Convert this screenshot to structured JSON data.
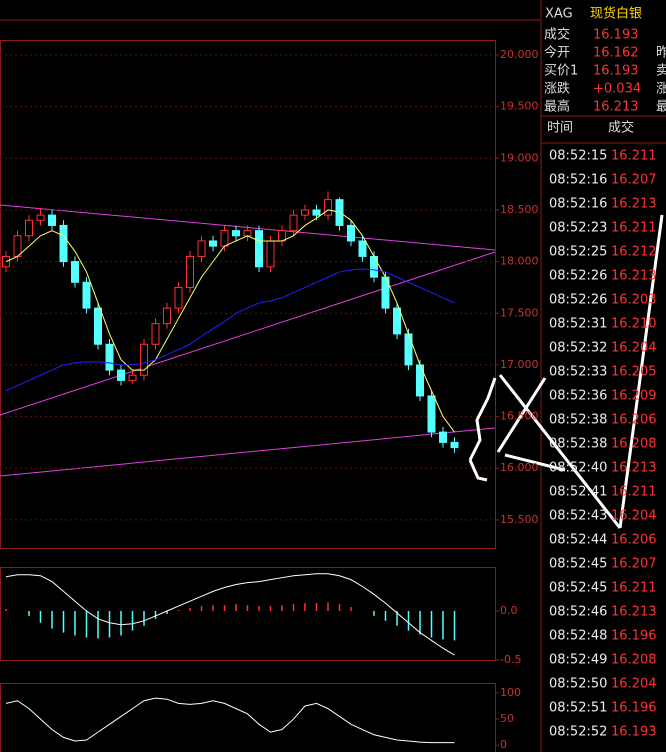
{
  "chart_data": [
    {
      "type": "candlestick",
      "open": [
        17.95,
        18.05,
        18.25,
        18.4,
        18.45,
        18.35,
        18.0,
        17.8,
        17.55,
        17.2,
        16.95,
        16.85,
        16.9,
        17.2,
        17.4,
        17.55,
        17.75,
        18.05,
        18.2,
        18.15,
        18.3,
        18.25,
        18.3,
        17.95,
        18.2,
        18.3,
        18.45,
        18.5,
        18.45,
        18.6,
        18.35,
        18.2,
        18.05,
        17.85,
        17.55,
        17.3,
        17.0,
        16.7,
        16.35,
        16.25
      ],
      "close": [
        18.05,
        18.25,
        18.4,
        18.45,
        18.35,
        18.0,
        17.8,
        17.55,
        17.2,
        16.95,
        16.85,
        16.9,
        17.2,
        17.4,
        17.55,
        17.75,
        18.05,
        18.2,
        18.15,
        18.3,
        18.25,
        18.3,
        17.95,
        18.2,
        18.3,
        18.45,
        18.5,
        18.45,
        18.6,
        18.35,
        18.2,
        18.05,
        17.85,
        17.55,
        17.3,
        17.0,
        16.7,
        16.35,
        16.25,
        16.2
      ],
      "high": [
        18.1,
        18.3,
        18.45,
        18.52,
        18.5,
        18.4,
        18.05,
        17.85,
        17.6,
        17.25,
        17.0,
        16.95,
        17.25,
        17.45,
        17.6,
        17.8,
        18.1,
        18.25,
        18.25,
        18.35,
        18.35,
        18.35,
        18.35,
        18.25,
        18.35,
        18.5,
        18.55,
        18.55,
        18.68,
        18.62,
        18.4,
        18.25,
        18.1,
        17.9,
        17.6,
        17.35,
        17.05,
        16.75,
        16.4,
        16.3
      ],
      "low": [
        17.9,
        18.0,
        18.2,
        18.35,
        18.3,
        17.95,
        17.75,
        17.5,
        17.15,
        16.9,
        16.8,
        16.82,
        16.85,
        17.15,
        17.35,
        17.5,
        17.7,
        18.0,
        18.1,
        18.1,
        18.2,
        18.2,
        17.9,
        17.9,
        18.15,
        18.25,
        18.4,
        18.4,
        18.4,
        18.3,
        18.15,
        18.0,
        17.8,
        17.5,
        17.25,
        16.95,
        16.65,
        16.3,
        16.2,
        16.15
      ],
      "series": [
        {
          "color": "#ffff66",
          "values": [
            18.0,
            18.05,
            18.15,
            18.25,
            18.3,
            18.25,
            18.1,
            17.9,
            17.6,
            17.3,
            17.05,
            16.95,
            16.95,
            17.05,
            17.25,
            17.45,
            17.65,
            17.85,
            18.0,
            18.15,
            18.2,
            18.25,
            18.2,
            18.2,
            18.2,
            18.25,
            18.35,
            18.42,
            18.5,
            18.48,
            18.4,
            18.25,
            18.05,
            17.85,
            17.6,
            17.3,
            17.0,
            16.75,
            16.5,
            16.35
          ]
        },
        {
          "color": "#2020ff",
          "values": [
            16.75,
            16.8,
            16.85,
            16.9,
            16.95,
            17.0,
            17.02,
            17.03,
            17.03,
            17.02,
            17.0,
            17.0,
            17.02,
            17.05,
            17.1,
            17.15,
            17.2,
            17.28,
            17.35,
            17.42,
            17.5,
            17.55,
            17.6,
            17.62,
            17.65,
            17.7,
            17.75,
            17.8,
            17.85,
            17.9,
            17.92,
            17.93,
            17.92,
            17.9,
            17.85,
            17.8,
            17.75,
            17.7,
            17.65,
            17.6
          ]
        }
      ],
      "up_color": "#ff3232",
      "down_color": "#54ffff",
      "ylim": [
        15.228,
        20.145
      ],
      "yticks": [
        {
          "value": 20,
          "label": "20.000"
        },
        {
          "value": 19.5,
          "label": "19.500"
        },
        {
          "value": 19,
          "label": "19.000"
        },
        {
          "value": 18.5,
          "label": "18.500"
        },
        {
          "value": 18,
          "label": "18.000"
        },
        {
          "value": 17.5,
          "label": "17.500"
        },
        {
          "value": 17,
          "label": "17.000"
        },
        {
          "value": 16.5,
          "label": "16.500"
        },
        {
          "value": 16,
          "label": "16.000"
        },
        {
          "value": 15.5,
          "label": "15.500"
        }
      ],
      "grid": true
    },
    {
      "type": "macd",
      "values": [
        0.02,
        0.0,
        -0.05,
        -0.12,
        -0.18,
        -0.22,
        -0.25,
        -0.27,
        -0.28,
        -0.27,
        -0.25,
        -0.2,
        -0.15,
        -0.08,
        -0.03,
        0.01,
        0.03,
        0.05,
        0.06,
        0.06,
        0.07,
        0.06,
        0.05,
        0.05,
        0.06,
        0.07,
        0.08,
        0.08,
        0.09,
        0.07,
        0.04,
        0.0,
        -0.05,
        -0.1,
        -0.15,
        -0.2,
        -0.24,
        -0.27,
        -0.29,
        -0.3
      ],
      "series": [
        {
          "color": "#ffffff",
          "values": [
            0.35,
            0.37,
            0.37,
            0.36,
            0.3,
            0.2,
            0.1,
            0.0,
            -0.08,
            -0.12,
            -0.14,
            -0.13,
            -0.1,
            -0.05,
            0.0,
            0.05,
            0.1,
            0.15,
            0.2,
            0.24,
            0.27,
            0.29,
            0.3,
            0.32,
            0.34,
            0.36,
            0.37,
            0.38,
            0.38,
            0.36,
            0.32,
            0.25,
            0.17,
            0.08,
            -0.02,
            -0.12,
            -0.22,
            -0.3,
            -0.38,
            -0.45
          ]
        }
      ],
      "up_color": "#ff3232",
      "down_color": "#54ffff",
      "ylim": [
        -0.5,
        0.449
      ],
      "yticks": [
        {
          "value": 0,
          "label": "0.0"
        },
        {
          "value": -0.5,
          "label": "-0.5"
        }
      ]
    },
    {
      "type": "line",
      "series": [
        {
          "color": "#ffffff",
          "values": [
            80,
            85,
            70,
            50,
            30,
            15,
            8,
            10,
            25,
            40,
            55,
            70,
            85,
            90,
            88,
            80,
            78,
            80,
            85,
            80,
            70,
            60,
            40,
            25,
            30,
            50,
            75,
            80,
            70,
            55,
            40,
            30,
            20,
            15,
            10,
            8,
            6,
            5,
            5,
            5
          ]
        }
      ],
      "ylim": [
        -13,
        119
      ],
      "yticks": [
        100,
        50,
        0
      ]
    }
  ],
  "quote": {
    "symbol": "XAG",
    "name": "现货白银",
    "rows": [
      {
        "label": "成交",
        "value": "16.193"
      },
      {
        "label": "今开",
        "value": "16.162"
      },
      {
        "label": "买价1",
        "value": "16.193"
      },
      {
        "label": "涨跌",
        "value": "+0.034"
      },
      {
        "label": "最高",
        "value": "16.213"
      }
    ],
    "cut_labels": [
      "昨",
      "卖",
      "涨",
      "最"
    ]
  },
  "trades": {
    "headers": [
      "时间",
      "成交"
    ],
    "rows": [
      [
        "08:52:15",
        "16.211"
      ],
      [
        "08:52:16",
        "16.207"
      ],
      [
        "08:52:16",
        "16.213"
      ],
      [
        "08:52:23",
        "16.211"
      ],
      [
        "08:52:25",
        "16.212"
      ],
      [
        "08:52:26",
        "16.213"
      ],
      [
        "08:52:26",
        "16.203"
      ],
      [
        "08:52:31",
        "16.210"
      ],
      [
        "08:52:32",
        "16.204"
      ],
      [
        "08:52:33",
        "16.205"
      ],
      [
        "08:52:36",
        "16.209"
      ],
      [
        "08:52:38",
        "16.206"
      ],
      [
        "08:52:38",
        "16.208"
      ],
      [
        "08:52:40",
        "16.213"
      ],
      [
        "08:52:41",
        "16.211"
      ],
      [
        "08:52:43",
        "16.204"
      ],
      [
        "08:52:44",
        "16.206"
      ],
      [
        "08:52:45",
        "16.207"
      ],
      [
        "08:52:45",
        "16.211"
      ],
      [
        "08:52:46",
        "16.213"
      ],
      [
        "08:52:48",
        "16.196"
      ],
      [
        "08:52:49",
        "16.208"
      ],
      [
        "08:52:50",
        "16.204"
      ],
      [
        "08:52:51",
        "16.196"
      ],
      [
        "08:52:52",
        "16.193"
      ]
    ]
  }
}
